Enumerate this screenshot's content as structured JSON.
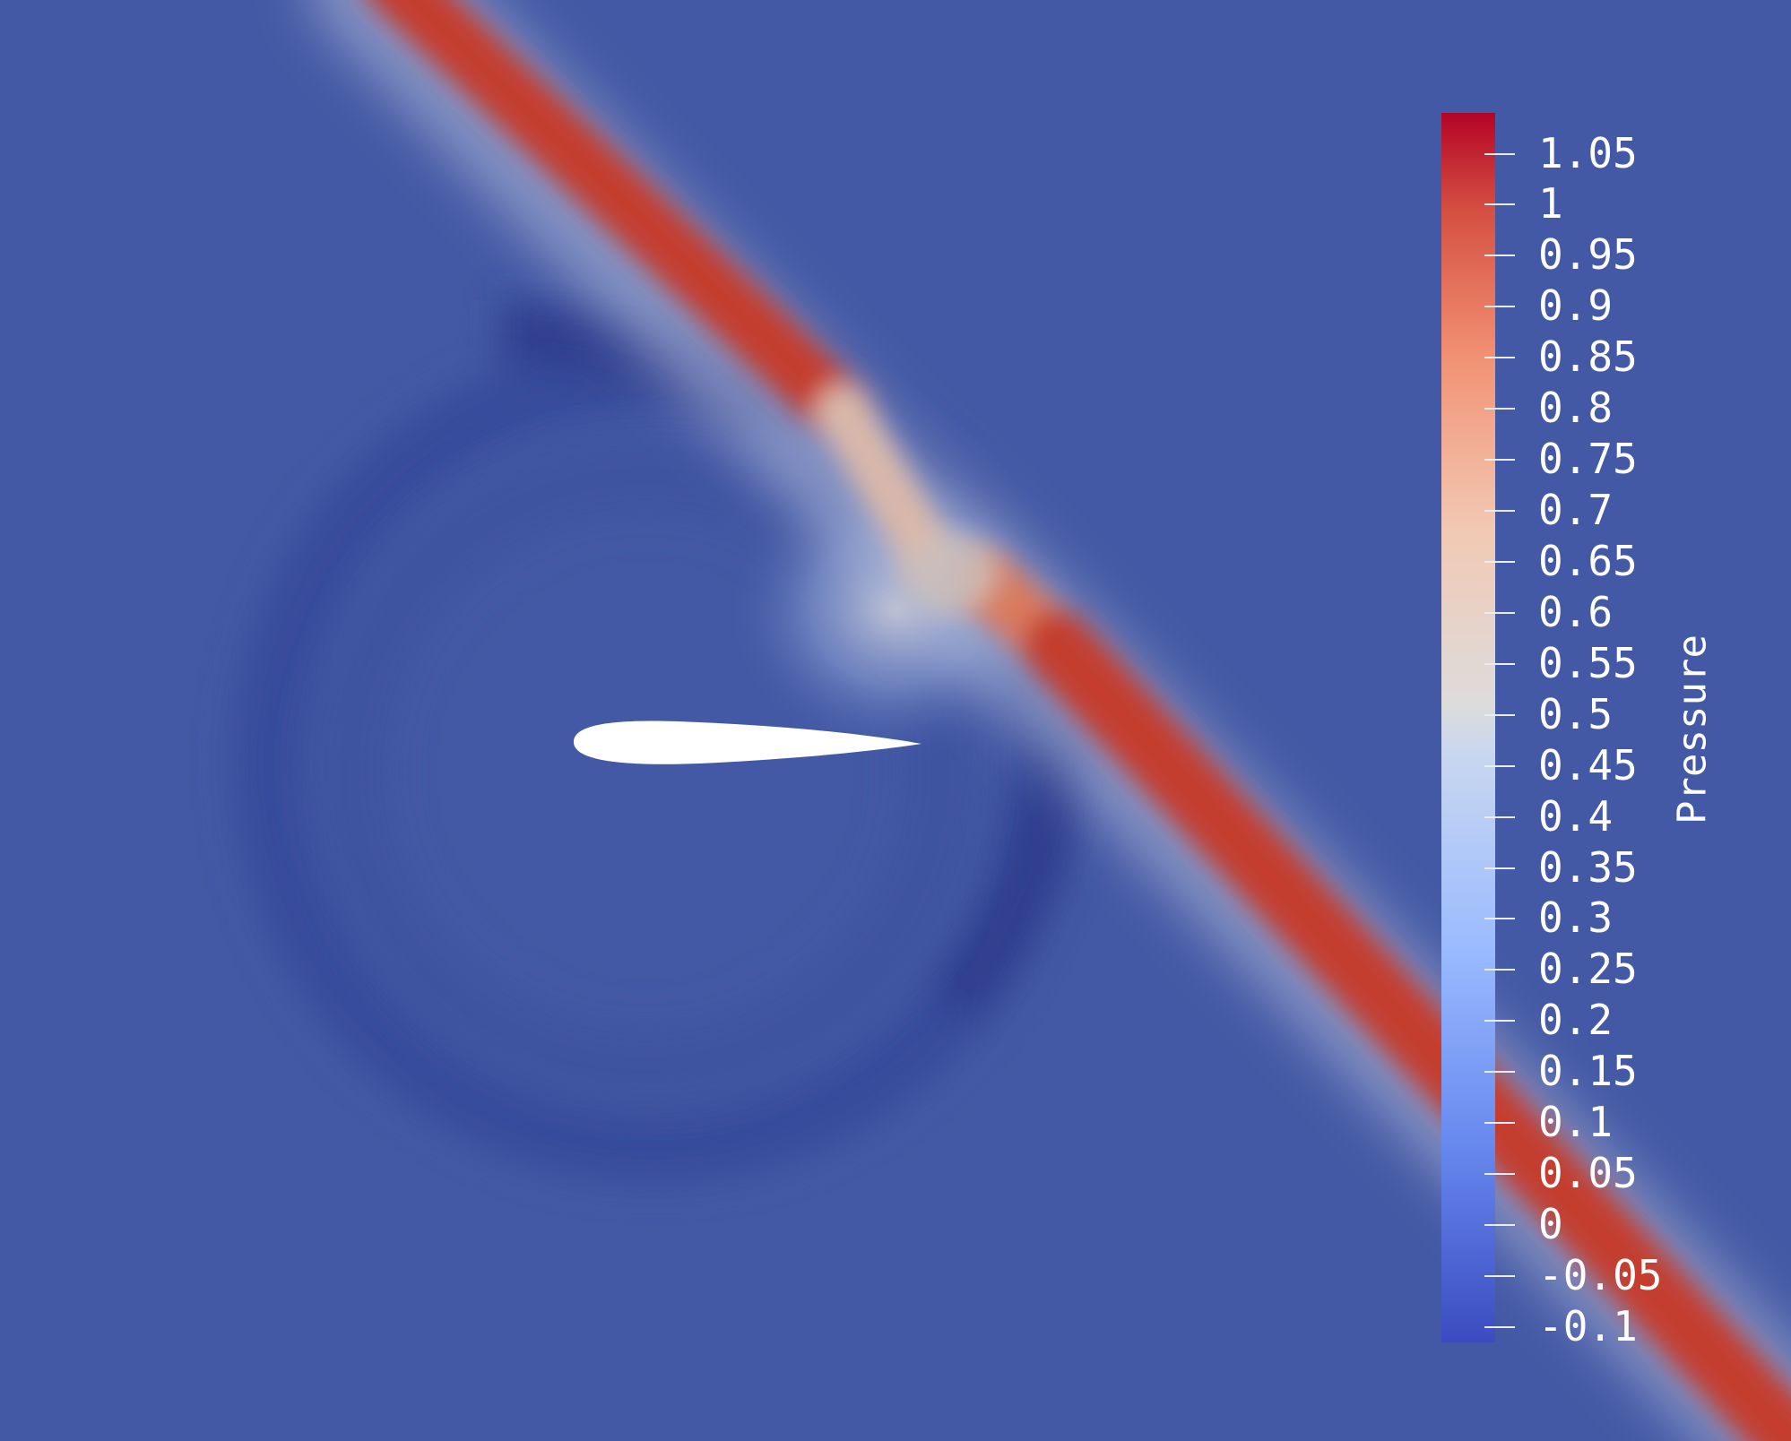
{
  "legend": {
    "title": "Pressure",
    "ticks": [
      "1.05",
      "1",
      "0.95",
      "0.9",
      "0.85",
      "0.8",
      "0.75",
      "0.7",
      "0.65",
      "0.6",
      "0.55",
      "0.5",
      "0.45",
      "0.4",
      "0.35",
      "0.3",
      "0.25",
      "0.2",
      "0.15",
      "0.1",
      "0.05",
      "0",
      "-0.05",
      "-0.1"
    ],
    "range_min": -0.115,
    "range_max": 1.09
  },
  "colors": {
    "background": "#4459a5",
    "colormap": [
      "#3b4cc0",
      "#7396f5",
      "#b0cbfc",
      "#dddcdc",
      "#f6bfa5",
      "#ec8165",
      "#b40426"
    ],
    "shock_band": "#c8402e",
    "expansion_ring": "#2f3f8f",
    "airfoil": "#ffffff"
  }
}
